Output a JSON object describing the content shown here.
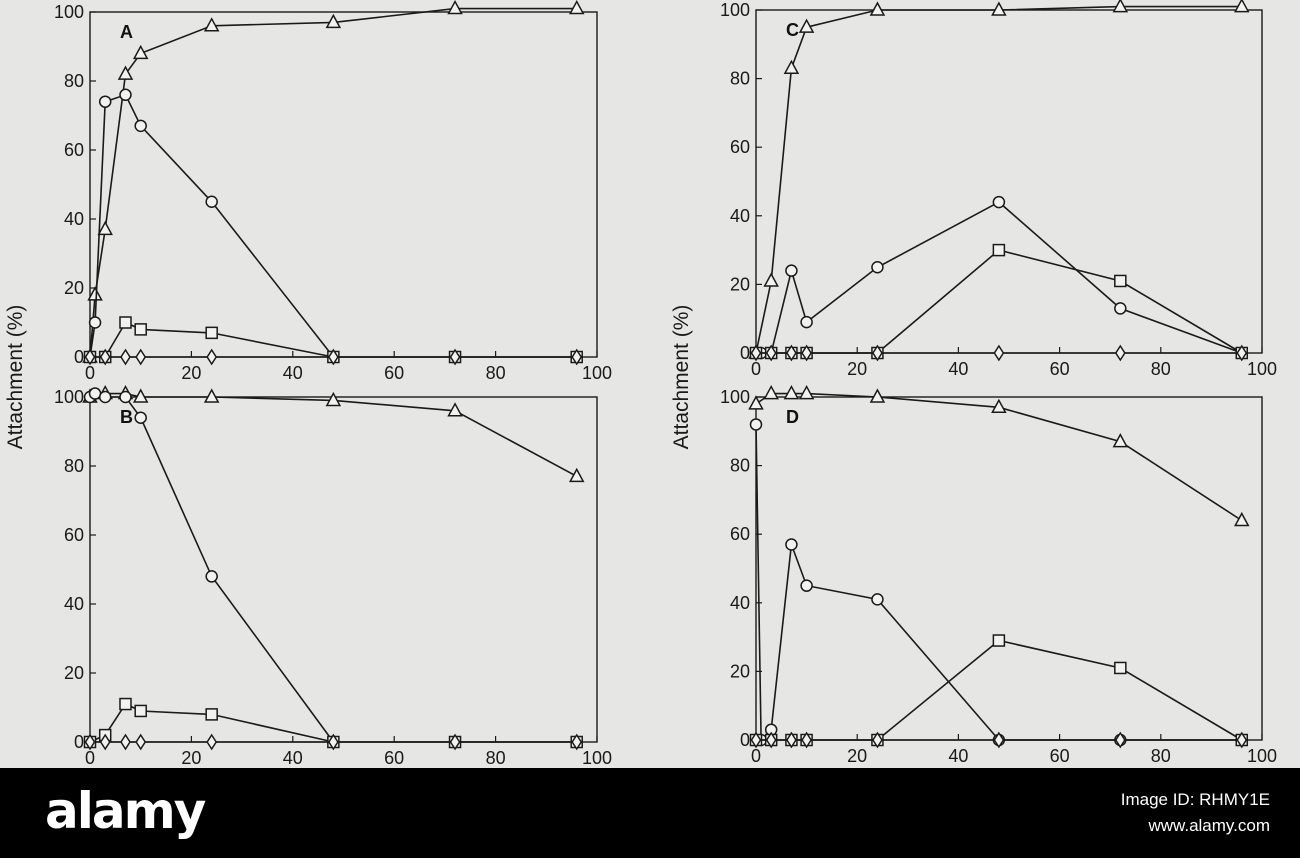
{
  "chart_data": [
    {
      "type": "line",
      "panel": "A",
      "ylabel": "Attachment (%)",
      "xlim": [
        0,
        100
      ],
      "ylim": [
        0,
        100
      ],
      "xticks": [
        0,
        20,
        40,
        60,
        80,
        100
      ],
      "yticks": [
        0,
        20,
        40,
        60,
        80,
        100
      ],
      "series": [
        {
          "marker": "triangle",
          "x": [
            0,
            1,
            3,
            7,
            10,
            24,
            48,
            72,
            96
          ],
          "y": [
            0,
            18,
            37,
            82,
            88,
            96,
            97,
            101,
            101
          ]
        },
        {
          "marker": "circle",
          "x": [
            0,
            1,
            3,
            7,
            10,
            24,
            48
          ],
          "y": [
            0,
            10,
            74,
            76,
            67,
            45,
            0
          ]
        },
        {
          "marker": "square",
          "x": [
            0,
            3,
            7,
            10,
            24,
            48,
            72,
            96
          ],
          "y": [
            0,
            0,
            10,
            8,
            7,
            0,
            0,
            0
          ]
        },
        {
          "marker": "diamond",
          "x": [
            0,
            3,
            7,
            10,
            24,
            48,
            72,
            96
          ],
          "y": [
            0,
            0,
            0,
            0,
            0,
            0,
            0,
            0
          ]
        }
      ]
    },
    {
      "type": "line",
      "panel": "B",
      "ylabel": "Attachment (%)",
      "xlim": [
        0,
        100
      ],
      "ylim": [
        0,
        100
      ],
      "xticks": [
        0,
        20,
        40,
        60,
        80,
        100
      ],
      "yticks": [
        0,
        20,
        40,
        60,
        80,
        100
      ],
      "series": [
        {
          "marker": "triangle",
          "x": [
            0,
            3,
            7,
            10,
            24,
            48,
            72,
            96
          ],
          "y": [
            100,
            101,
            101,
            100,
            100,
            99,
            96,
            77
          ]
        },
        {
          "marker": "circle",
          "x": [
            0,
            1,
            3,
            7,
            10,
            24,
            48
          ],
          "y": [
            100,
            101,
            100,
            100,
            94,
            48,
            0
          ]
        },
        {
          "marker": "square",
          "x": [
            0,
            3,
            7,
            10,
            24,
            48,
            72,
            96
          ],
          "y": [
            0,
            2,
            11,
            9,
            8,
            0,
            0,
            0
          ]
        },
        {
          "marker": "diamond",
          "x": [
            0,
            3,
            7,
            10,
            24,
            48,
            72,
            96
          ],
          "y": [
            0,
            0,
            0,
            0,
            0,
            0,
            0,
            0
          ]
        }
      ]
    },
    {
      "type": "line",
      "panel": "C",
      "ylabel": "Attachment (%)",
      "xlim": [
        0,
        100
      ],
      "ylim": [
        0,
        100
      ],
      "xticks": [
        0,
        20,
        40,
        60,
        80,
        100
      ],
      "yticks": [
        0,
        20,
        40,
        60,
        80,
        100
      ],
      "series": [
        {
          "marker": "triangle",
          "x": [
            0,
            3,
            7,
            10,
            24,
            48,
            72,
            96
          ],
          "y": [
            0,
            21,
            83,
            95,
            100,
            100,
            101,
            101
          ]
        },
        {
          "marker": "circle",
          "x": [
            0,
            1,
            3,
            7,
            10,
            24,
            48,
            72,
            96
          ],
          "y": [
            0,
            0,
            0,
            24,
            9,
            25,
            44,
            13,
            0
          ]
        },
        {
          "marker": "square",
          "x": [
            0,
            3,
            7,
            10,
            24,
            48,
            72,
            96
          ],
          "y": [
            0,
            0,
            0,
            0,
            0,
            30,
            21,
            0
          ]
        },
        {
          "marker": "diamond",
          "x": [
            0,
            3,
            7,
            10,
            24,
            48,
            72,
            96
          ],
          "y": [
            0,
            0,
            0,
            0,
            0,
            0,
            0,
            0
          ]
        }
      ]
    },
    {
      "type": "line",
      "panel": "D",
      "ylabel": "Attachment (%)",
      "xlim": [
        0,
        100
      ],
      "ylim": [
        0,
        100
      ],
      "xticks": [
        0,
        20,
        40,
        60,
        80,
        100
      ],
      "yticks": [
        0,
        20,
        40,
        60,
        80,
        100
      ],
      "series": [
        {
          "marker": "triangle",
          "x": [
            0,
            3,
            7,
            10,
            24,
            48,
            72,
            96
          ],
          "y": [
            98,
            101,
            101,
            101,
            100,
            97,
            87,
            64
          ]
        },
        {
          "marker": "circle",
          "x": [
            0,
            1,
            3,
            7,
            10,
            24,
            48,
            72,
            96
          ],
          "y": [
            92,
            0,
            3,
            57,
            45,
            41,
            0,
            0,
            0
          ]
        },
        {
          "marker": "square",
          "x": [
            0,
            3,
            7,
            10,
            24,
            48,
            72,
            96
          ],
          "y": [
            0,
            0,
            0,
            0,
            0,
            29,
            21,
            0
          ]
        },
        {
          "marker": "diamond",
          "x": [
            0,
            3,
            7,
            10,
            24,
            48,
            72,
            96
          ],
          "y": [
            0,
            0,
            0,
            0,
            0,
            0,
            0,
            0
          ]
        }
      ]
    }
  ],
  "watermark": {
    "brand": "alamy",
    "image_id": "Image ID: RHMY1E",
    "url": "www.alamy.com"
  }
}
